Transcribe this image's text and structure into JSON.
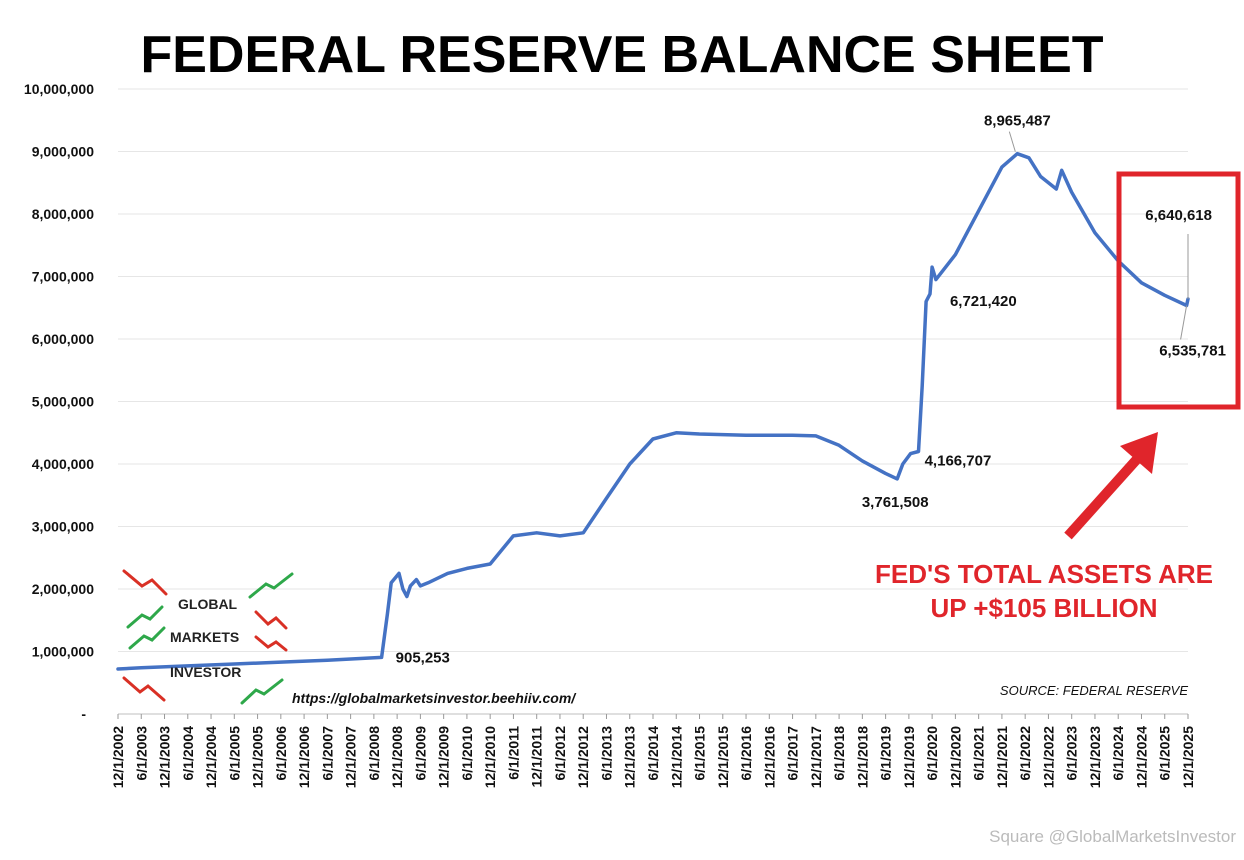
{
  "chart_data": {
    "type": "line",
    "title": "FEDERAL RESERVE BALANCE SHEET",
    "source": "SOURCE: FEDERAL RESERVE",
    "url": "https://globalmarketsinvestor.beehiiv.com/",
    "logo": {
      "line1": "GLOBAL",
      "line2": "MARKETS",
      "line3": "INVESTOR"
    },
    "watermark": "Square @GlobalMarketsInvestor",
    "ylim": [
      0,
      10000000
    ],
    "y_ticks": [
      {
        "value": 0,
        "label": "-"
      },
      {
        "value": 1000000,
        "label": "1,000,000"
      },
      {
        "value": 2000000,
        "label": "2,000,000"
      },
      {
        "value": 3000000,
        "label": "3,000,000"
      },
      {
        "value": 4000000,
        "label": "4,000,000"
      },
      {
        "value": 5000000,
        "label": "5,000,000"
      },
      {
        "value": 6000000,
        "label": "6,000,000"
      },
      {
        "value": 7000000,
        "label": "7,000,000"
      },
      {
        "value": 8000000,
        "label": "8,000,000"
      },
      {
        "value": 9000000,
        "label": "9,000,000"
      },
      {
        "value": 10000000,
        "label": "10,000,000"
      }
    ],
    "x_ticks": [
      "12/1/2002",
      "6/1/2003",
      "12/1/2003",
      "6/1/2004",
      "12/1/2004",
      "6/1/2005",
      "12/1/2005",
      "6/1/2006",
      "12/1/2006",
      "6/1/2007",
      "12/1/2007",
      "6/1/2008",
      "12/1/2008",
      "6/1/2009",
      "12/1/2009",
      "6/1/2010",
      "12/1/2010",
      "6/1/2011",
      "12/1/2011",
      "6/1/2012",
      "12/1/2012",
      "6/1/2013",
      "12/1/2013",
      "6/1/2014",
      "12/1/2014",
      "6/1/2015",
      "12/1/2015",
      "6/1/2016",
      "12/1/2016",
      "6/1/2017",
      "12/1/2017",
      "6/1/2018",
      "12/1/2018",
      "6/1/2019",
      "12/1/2019",
      "6/1/2020",
      "12/1/2020",
      "6/1/2021",
      "12/1/2021",
      "6/1/2022",
      "12/1/2022",
      "6/1/2023",
      "12/1/2023",
      "6/1/2024",
      "12/1/2024",
      "6/1/2025",
      "12/1/2025"
    ],
    "series": [
      {
        "color": "#4472c4",
        "points": [
          [
            "2002-12-01",
            720000
          ],
          [
            "2003-06-01",
            740000
          ],
          [
            "2004-06-01",
            770000
          ],
          [
            "2005-06-01",
            800000
          ],
          [
            "2006-06-01",
            830000
          ],
          [
            "2007-06-01",
            860000
          ],
          [
            "2008-08-01",
            905253
          ],
          [
            "2008-09-15",
            1600000
          ],
          [
            "2008-10-15",
            2100000
          ],
          [
            "2008-12-15",
            2250000
          ],
          [
            "2009-01-15",
            2000000
          ],
          [
            "2009-02-15",
            1880000
          ],
          [
            "2009-03-15",
            2050000
          ],
          [
            "2009-05-01",
            2150000
          ],
          [
            "2009-06-01",
            2050000
          ],
          [
            "2009-08-01",
            2100000
          ],
          [
            "2010-01-01",
            2250000
          ],
          [
            "2010-06-01",
            2330000
          ],
          [
            "2010-12-01",
            2400000
          ],
          [
            "2011-06-01",
            2850000
          ],
          [
            "2011-12-01",
            2900000
          ],
          [
            "2012-06-01",
            2850000
          ],
          [
            "2012-12-01",
            2900000
          ],
          [
            "2013-06-01",
            3450000
          ],
          [
            "2013-12-01",
            4000000
          ],
          [
            "2014-06-01",
            4400000
          ],
          [
            "2014-12-01",
            4500000
          ],
          [
            "2015-06-01",
            4480000
          ],
          [
            "2016-06-01",
            4460000
          ],
          [
            "2017-06-01",
            4460000
          ],
          [
            "2017-12-01",
            4450000
          ],
          [
            "2018-06-01",
            4300000
          ],
          [
            "2018-12-01",
            4050000
          ],
          [
            "2019-06-01",
            3850000
          ],
          [
            "2019-09-01",
            3761508
          ],
          [
            "2019-10-15",
            4000000
          ],
          [
            "2019-12-15",
            4166707
          ],
          [
            "2020-02-15",
            4200000
          ],
          [
            "2020-03-15",
            5250000
          ],
          [
            "2020-04-15",
            6600000
          ],
          [
            "2020-05-15",
            6721420
          ],
          [
            "2020-06-01",
            7150000
          ],
          [
            "2020-07-01",
            6950000
          ],
          [
            "2020-12-01",
            7350000
          ],
          [
            "2021-06-01",
            8050000
          ],
          [
            "2021-12-01",
            8750000
          ],
          [
            "2022-04-01",
            8965487
          ],
          [
            "2022-07-01",
            8900000
          ],
          [
            "2022-10-01",
            8600000
          ],
          [
            "2023-02-01",
            8400000
          ],
          [
            "2023-03-15",
            8700000
          ],
          [
            "2023-06-01",
            8350000
          ],
          [
            "2023-12-01",
            7700000
          ],
          [
            "2024-06-01",
            7250000
          ],
          [
            "2024-12-01",
            6900000
          ],
          [
            "2025-06-01",
            6700000
          ],
          [
            "2025-11-20",
            6535781
          ],
          [
            "2025-12-01",
            6640618
          ]
        ]
      }
    ],
    "annotations": [
      {
        "label": "905,253",
        "date": "2008-08-01",
        "value": 905253
      },
      {
        "label": "3,761,508",
        "date": "2019-09-01",
        "value": 3761508
      },
      {
        "label": "4,166,707",
        "date": "2019-12-15",
        "value": 4166707
      },
      {
        "label": "6,721,420",
        "date": "2020-05-15",
        "value": 6721420
      },
      {
        "label": "8,965,487",
        "date": "2022-04-01",
        "value": 8965487
      },
      {
        "label": "6,640,618",
        "date": "2025-12-01",
        "value": 6640618
      },
      {
        "label": "6,535,781",
        "date": "2025-11-20",
        "value": 6535781
      }
    ],
    "callout": {
      "line1": "FED'S TOTAL ASSETS ARE",
      "line2": "UP +$105 BILLION",
      "color": "#e0252b"
    },
    "grid": "horizontal",
    "legend": "none"
  }
}
